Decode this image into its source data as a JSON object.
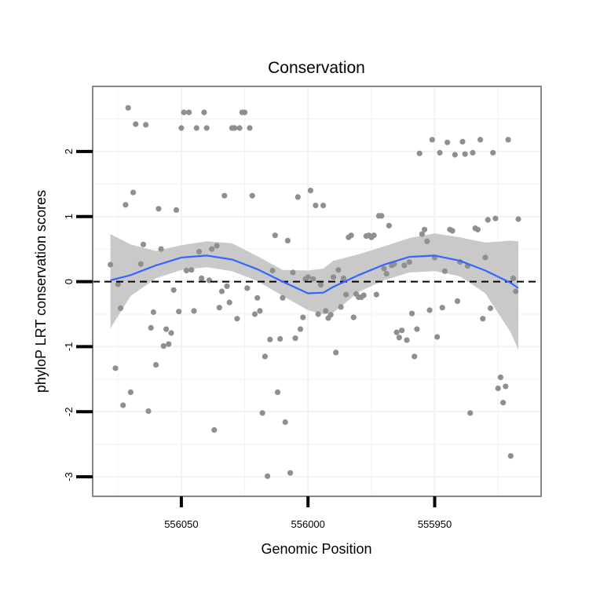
{
  "chart_data": {
    "type": "scatter",
    "title": "Conservation",
    "xlabel": "Genomic Position",
    "ylabel": "phyloP LRT conservation scores",
    "x_reversed": true,
    "xlim": [
      556085,
      555908
    ],
    "ylim": [
      -3.3,
      3.0
    ],
    "x_ticks": [
      556050,
      556000,
      555950
    ],
    "x_tick_labels": [
      "556050",
      "556000",
      "555950"
    ],
    "y_ticks": [
      -3,
      -2,
      -1,
      0,
      1,
      2
    ],
    "y_tick_labels": [
      "-3",
      "-2",
      "-1",
      "0",
      "1",
      "2"
    ],
    "grid": true,
    "reference_line": {
      "y": 0,
      "style": "dashed",
      "color": "#000000"
    },
    "colors": {
      "points": "#8f8f8f",
      "smooth_line": "#3366ff",
      "confidence_band": "#c9c9c9",
      "panel_border": "#888888",
      "grid": "#f2f2f2"
    },
    "points": [
      [
        556078,
        0.26
      ],
      [
        556076,
        -1.33
      ],
      [
        556075,
        -0.04
      ],
      [
        556074,
        -0.41
      ],
      [
        556073,
        -1.9
      ],
      [
        556072,
        1.18
      ],
      [
        556071,
        2.67
      ],
      [
        556070,
        -1.7
      ],
      [
        556069,
        1.37
      ],
      [
        556068,
        2.42
      ],
      [
        556066,
        0.27
      ],
      [
        556065,
        0.57
      ],
      [
        556064,
        2.41
      ],
      [
        556063,
        -1.99
      ],
      [
        556062,
        -0.71
      ],
      [
        556061,
        -0.47
      ],
      [
        556060,
        -1.28
      ],
      [
        556059,
        1.12
      ],
      [
        556058,
        0.5
      ],
      [
        556057,
        -0.99
      ],
      [
        556056,
        -0.73
      ],
      [
        556055,
        -0.96
      ],
      [
        556054,
        -0.79
      ],
      [
        556053,
        -0.13
      ],
      [
        556052,
        1.1
      ],
      [
        556051,
        -0.46
      ],
      [
        556050,
        2.36
      ],
      [
        556049,
        2.6
      ],
      [
        556048,
        0.17
      ],
      [
        556047,
        2.6
      ],
      [
        556046,
        0.18
      ],
      [
        556045,
        -0.45
      ],
      [
        556044,
        2.36
      ],
      [
        556043,
        0.46
      ],
      [
        556042,
        0.05
      ],
      [
        556041,
        2.6
      ],
      [
        556040,
        2.36
      ],
      [
        556039,
        0.02
      ],
      [
        556038,
        0.5
      ],
      [
        556037,
        -2.28
      ],
      [
        556036,
        0.55
      ],
      [
        556035,
        -0.4
      ],
      [
        556034,
        -0.15
      ],
      [
        556033,
        1.32
      ],
      [
        556032,
        -0.07
      ],
      [
        556031,
        -0.32
      ],
      [
        556030,
        2.36
      ],
      [
        556029,
        2.36
      ],
      [
        556028,
        -0.57
      ],
      [
        556027,
        2.36
      ],
      [
        556026,
        2.6
      ],
      [
        556025,
        2.6
      ],
      [
        556024,
        -0.1
      ],
      [
        556023,
        2.36
      ],
      [
        556022,
        1.32
      ],
      [
        556021,
        -0.5
      ],
      [
        556020,
        -0.25
      ],
      [
        556019,
        -0.45
      ],
      [
        556018,
        -2.02
      ],
      [
        556017,
        -1.15
      ],
      [
        556016,
        -2.99
      ],
      [
        556015,
        -0.89
      ],
      [
        556014,
        0.17
      ],
      [
        556013,
        0.71
      ],
      [
        556012,
        -1.7
      ],
      [
        556011,
        -0.88
      ],
      [
        556010,
        -0.25
      ],
      [
        556009,
        -2.16
      ],
      [
        556008,
        0.63
      ],
      [
        556007,
        -2.94
      ],
      [
        556006,
        0.14
      ],
      [
        556005,
        -0.87
      ],
      [
        556004,
        1.3
      ],
      [
        556003,
        -0.73
      ],
      [
        556002,
        -0.55
      ],
      [
        556001,
        0.04
      ],
      [
        556000,
        0.07
      ],
      [
        555999,
        1.4
      ],
      [
        555998,
        0.04
      ],
      [
        555997,
        1.17
      ],
      [
        555996,
        -0.5
      ],
      [
        555995,
        -0.05
      ],
      [
        555994,
        1.17
      ],
      [
        555993,
        -0.45
      ],
      [
        555992,
        -0.56
      ],
      [
        555991,
        -0.51
      ],
      [
        555990,
        0.07
      ],
      [
        555989,
        -1.09
      ],
      [
        555988,
        0.18
      ],
      [
        555987,
        -0.39
      ],
      [
        555986,
        0.05
      ],
      [
        555985,
        -0.2
      ],
      [
        555984,
        0.68
      ],
      [
        555983,
        0.71
      ],
      [
        555982,
        -0.55
      ],
      [
        555981,
        -0.19
      ],
      [
        555980,
        -0.24
      ],
      [
        555979,
        -0.24
      ],
      [
        555978,
        -0.21
      ],
      [
        555977,
        0.7
      ],
      [
        555976,
        0.71
      ],
      [
        555975,
        0.68
      ],
      [
        555974,
        0.71
      ],
      [
        555973,
        -0.2
      ],
      [
        555972,
        1.01
      ],
      [
        555971,
        1.01
      ],
      [
        555970,
        0.2
      ],
      [
        555969,
        0.12
      ],
      [
        555968,
        0.86
      ],
      [
        555967,
        0.25
      ],
      [
        555966,
        0.27
      ],
      [
        555965,
        -0.78
      ],
      [
        555964,
        -0.86
      ],
      [
        555963,
        -0.75
      ],
      [
        555962,
        0.25
      ],
      [
        555961,
        -0.9
      ],
      [
        555960,
        0.3
      ],
      [
        555959,
        -0.49
      ],
      [
        555958,
        -1.15
      ],
      [
        555957,
        -0.73
      ],
      [
        555956,
        1.97
      ],
      [
        555955,
        0.73
      ],
      [
        555954,
        0.8
      ],
      [
        555953,
        0.62
      ],
      [
        555952,
        -0.44
      ],
      [
        555951,
        2.18
      ],
      [
        555950,
        0.37
      ],
      [
        555949,
        -0.85
      ],
      [
        555948,
        1.98
      ],
      [
        555947,
        -0.4
      ],
      [
        555946,
        0.16
      ],
      [
        555945,
        2.14
      ],
      [
        555944,
        0.8
      ],
      [
        555943,
        0.78
      ],
      [
        555942,
        1.95
      ],
      [
        555941,
        -0.3
      ],
      [
        555940,
        0.3
      ],
      [
        555939,
        2.15
      ],
      [
        555938,
        1.96
      ],
      [
        555937,
        0.24
      ],
      [
        555936,
        -2.02
      ],
      [
        555935,
        1.98
      ],
      [
        555934,
        0.82
      ],
      [
        555933,
        0.8
      ],
      [
        555932,
        2.18
      ],
      [
        555931,
        -0.57
      ],
      [
        555930,
        0.37
      ],
      [
        555929,
        0.95
      ],
      [
        555928,
        -0.41
      ],
      [
        555927,
        1.98
      ],
      [
        555926,
        0.97
      ],
      [
        555925,
        -1.64
      ],
      [
        555924,
        -1.47
      ],
      [
        555923,
        -1.86
      ],
      [
        555922,
        -1.61
      ],
      [
        555921,
        2.18
      ],
      [
        555920,
        -2.68
      ],
      [
        555919,
        0.05
      ],
      [
        555918,
        -0.15
      ],
      [
        555917,
        0.96
      ]
    ],
    "smooth": {
      "x": [
        556078,
        556070,
        556060,
        556050,
        556040,
        556030,
        556020,
        556010,
        556000,
        555994,
        555990,
        555980,
        555970,
        555960,
        555950,
        555940,
        555930,
        555920,
        555917
      ],
      "y": [
        0.02,
        0.1,
        0.25,
        0.37,
        0.4,
        0.34,
        0.19,
        0.0,
        -0.18,
        -0.17,
        -0.08,
        0.1,
        0.26,
        0.38,
        0.4,
        0.32,
        0.17,
        -0.02,
        -0.1
      ],
      "lower": [
        -0.72,
        -0.22,
        0.05,
        0.18,
        0.22,
        0.16,
        0.01,
        -0.22,
        -0.44,
        -0.5,
        -0.48,
        -0.16,
        0.02,
        0.14,
        0.16,
        0.08,
        -0.18,
        -0.78,
        -1.05
      ],
      "upper": [
        0.73,
        0.57,
        0.47,
        0.56,
        0.62,
        0.59,
        0.39,
        0.18,
        0.17,
        0.2,
        0.32,
        0.42,
        0.54,
        0.67,
        0.74,
        0.68,
        0.6,
        0.63,
        0.62
      ]
    }
  }
}
